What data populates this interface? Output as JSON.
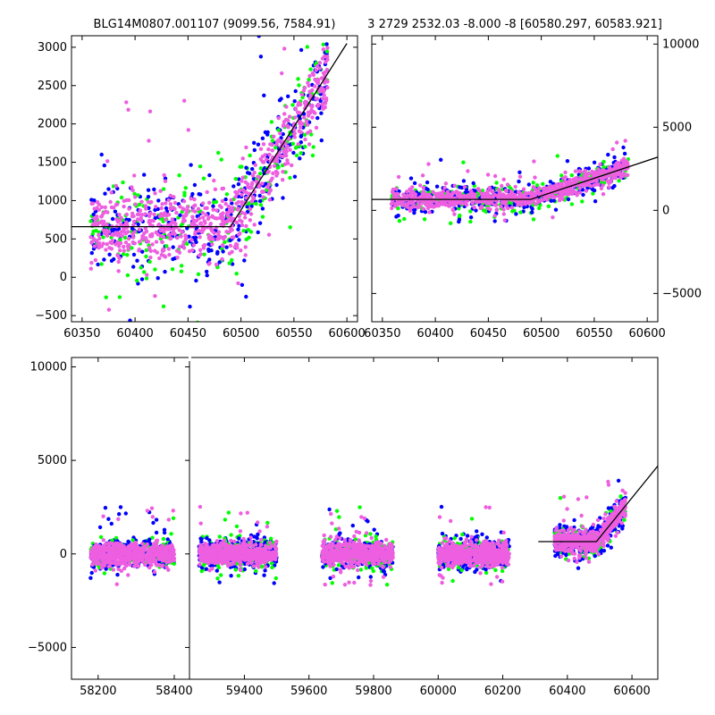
{
  "chart_data": [
    {
      "panel": "top-left",
      "type": "scatter",
      "title": "BLG14M0807.001107 (9099.56, 7584.91)",
      "x_ticks": [
        60350,
        60400,
        60450,
        60500,
        60550,
        60600
      ],
      "y_ticks": [
        -500,
        0,
        500,
        1000,
        1500,
        2000,
        2500,
        3000
      ],
      "xlim": [
        60340,
        60610
      ],
      "ylim": [
        -580,
        3150
      ],
      "y_axis_side": "left",
      "grid": false,
      "model_line": {
        "x": [
          60340,
          60490,
          60600
        ],
        "y": [
          660,
          660,
          3050
        ]
      },
      "series": [
        {
          "color": "#00ff00",
          "values": "approx. 250 points, x 60360-60580, clustered around model with large scatter"
        },
        {
          "color": "#0000ff",
          "values": "approx. 400 points, x 60360-60580, clustered around model"
        },
        {
          "color": "#ee5ee0",
          "values": "approx. 900 points, x 60360-60580, tightly around model"
        }
      ]
    },
    {
      "panel": "top-right",
      "type": "scatter",
      "title": "3 2729 2532.03 -8.000 -8 [60580.297, 60583.921]",
      "x_ticks": [
        60350,
        60400,
        60450,
        60500,
        60550,
        60600
      ],
      "y_ticks": [
        -5000,
        0,
        5000,
        10000
      ],
      "xlim": [
        60340,
        60610
      ],
      "ylim": [
        -6700,
        10500
      ],
      "y_axis_side": "right",
      "grid": false,
      "model_line": {
        "x": [
          60340,
          60490,
          60610
        ],
        "y": [
          660,
          660,
          3200
        ]
      }
    },
    {
      "panel": "bottom",
      "type": "scatter",
      "title": "",
      "x_ticks": [
        58200,
        58400,
        59400,
        59600,
        59800,
        60000,
        60200,
        60400,
        60600
      ],
      "y_ticks": [
        -5000,
        0,
        5000,
        10000
      ],
      "ylim": [
        -6700,
        10500
      ],
      "broken_x_axis": true,
      "segments": [
        {
          "xlim": [
            58130,
            58440
          ],
          "season": [
            58180,
            58400
          ]
        },
        {
          "xlim": [
            59230,
            60680
          ],
          "seasons": [
            [
              59260,
              59500
            ],
            [
              59640,
              59860
            ],
            [
              60000,
              60220
            ],
            [
              60360,
              60580
            ]
          ]
        }
      ],
      "model_line": {
        "x": [
          60310,
          60490,
          60680
        ],
        "y": [
          660,
          660,
          4700
        ]
      },
      "series": [
        {
          "color": "#00ff00"
        },
        {
          "color": "#0000ff"
        },
        {
          "color": "#ee5ee0"
        }
      ]
    }
  ]
}
